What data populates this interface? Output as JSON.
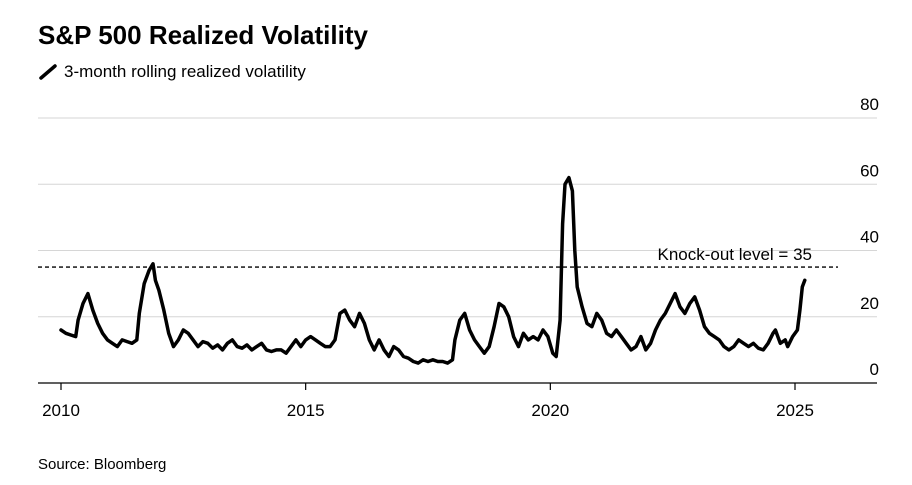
{
  "chart_data": {
    "type": "line",
    "title": "S&P 500 Realized Volatility",
    "series": [
      {
        "name": "3-month rolling realized volatility",
        "color": "#000000",
        "points": [
          [
            2010.0,
            16
          ],
          [
            2010.1,
            15
          ],
          [
            2010.2,
            14.5
          ],
          [
            2010.3,
            14
          ],
          [
            2010.35,
            19
          ],
          [
            2010.45,
            24
          ],
          [
            2010.55,
            27
          ],
          [
            2010.65,
            22
          ],
          [
            2010.75,
            18
          ],
          [
            2010.85,
            15
          ],
          [
            2010.95,
            13
          ],
          [
            2011.05,
            12
          ],
          [
            2011.15,
            11
          ],
          [
            2011.25,
            13
          ],
          [
            2011.35,
            12.5
          ],
          [
            2011.45,
            12
          ],
          [
            2011.55,
            13
          ],
          [
            2011.6,
            21
          ],
          [
            2011.7,
            30
          ],
          [
            2011.8,
            34
          ],
          [
            2011.88,
            36
          ],
          [
            2011.93,
            31
          ],
          [
            2012.0,
            28
          ],
          [
            2012.1,
            22
          ],
          [
            2012.2,
            15
          ],
          [
            2012.3,
            11
          ],
          [
            2012.4,
            13
          ],
          [
            2012.5,
            16
          ],
          [
            2012.6,
            15
          ],
          [
            2012.7,
            13
          ],
          [
            2012.8,
            11
          ],
          [
            2012.9,
            12.5
          ],
          [
            2013.0,
            12
          ],
          [
            2013.1,
            10.5
          ],
          [
            2013.2,
            11.5
          ],
          [
            2013.3,
            10
          ],
          [
            2013.4,
            12
          ],
          [
            2013.5,
            13
          ],
          [
            2013.6,
            11
          ],
          [
            2013.7,
            10.5
          ],
          [
            2013.8,
            11.5
          ],
          [
            2013.9,
            10
          ],
          [
            2014.0,
            11
          ],
          [
            2014.1,
            12
          ],
          [
            2014.2,
            10
          ],
          [
            2014.3,
            9.5
          ],
          [
            2014.4,
            10
          ],
          [
            2014.5,
            10
          ],
          [
            2014.6,
            9
          ],
          [
            2014.7,
            11
          ],
          [
            2014.8,
            13
          ],
          [
            2014.9,
            11
          ],
          [
            2015.0,
            13
          ],
          [
            2015.1,
            14
          ],
          [
            2015.2,
            13
          ],
          [
            2015.3,
            12
          ],
          [
            2015.4,
            11
          ],
          [
            2015.5,
            11
          ],
          [
            2015.6,
            13
          ],
          [
            2015.7,
            21
          ],
          [
            2015.8,
            22
          ],
          [
            2015.9,
            19
          ],
          [
            2016.0,
            17
          ],
          [
            2016.1,
            21
          ],
          [
            2016.2,
            18
          ],
          [
            2016.3,
            13
          ],
          [
            2016.4,
            10
          ],
          [
            2016.5,
            13
          ],
          [
            2016.6,
            10
          ],
          [
            2016.7,
            8
          ],
          [
            2016.8,
            11
          ],
          [
            2016.9,
            10
          ],
          [
            2017.0,
            8
          ],
          [
            2017.1,
            7.5
          ],
          [
            2017.2,
            6.5
          ],
          [
            2017.3,
            6
          ],
          [
            2017.4,
            7
          ],
          [
            2017.5,
            6.5
          ],
          [
            2017.6,
            7
          ],
          [
            2017.7,
            6.5
          ],
          [
            2017.8,
            6.5
          ],
          [
            2017.9,
            6
          ],
          [
            2018.0,
            7
          ],
          [
            2018.05,
            13
          ],
          [
            2018.15,
            19
          ],
          [
            2018.25,
            21
          ],
          [
            2018.35,
            16
          ],
          [
            2018.45,
            13
          ],
          [
            2018.55,
            11
          ],
          [
            2018.65,
            9
          ],
          [
            2018.75,
            11
          ],
          [
            2018.85,
            17
          ],
          [
            2018.95,
            24
          ],
          [
            2019.05,
            23
          ],
          [
            2019.15,
            20
          ],
          [
            2019.25,
            14
          ],
          [
            2019.35,
            11
          ],
          [
            2019.45,
            15
          ],
          [
            2019.55,
            13
          ],
          [
            2019.65,
            14
          ],
          [
            2019.75,
            13
          ],
          [
            2019.85,
            16
          ],
          [
            2019.95,
            14
          ],
          [
            2020.05,
            9
          ],
          [
            2020.12,
            8
          ],
          [
            2020.2,
            19
          ],
          [
            2020.25,
            48
          ],
          [
            2020.3,
            60
          ],
          [
            2020.38,
            62
          ],
          [
            2020.45,
            58
          ],
          [
            2020.5,
            40
          ],
          [
            2020.55,
            29
          ],
          [
            2020.65,
            23
          ],
          [
            2020.75,
            18
          ],
          [
            2020.85,
            17
          ],
          [
            2020.95,
            21
          ],
          [
            2021.05,
            19
          ],
          [
            2021.15,
            15
          ],
          [
            2021.25,
            14
          ],
          [
            2021.35,
            16
          ],
          [
            2021.45,
            14
          ],
          [
            2021.55,
            12
          ],
          [
            2021.65,
            10
          ],
          [
            2021.75,
            11
          ],
          [
            2021.85,
            14
          ],
          [
            2021.95,
            10
          ],
          [
            2022.05,
            12
          ],
          [
            2022.15,
            16
          ],
          [
            2022.25,
            19
          ],
          [
            2022.35,
            21
          ],
          [
            2022.45,
            24
          ],
          [
            2022.55,
            27
          ],
          [
            2022.65,
            23
          ],
          [
            2022.75,
            21
          ],
          [
            2022.85,
            24
          ],
          [
            2022.95,
            26
          ],
          [
            2023.05,
            22
          ],
          [
            2023.15,
            17
          ],
          [
            2023.25,
            15
          ],
          [
            2023.35,
            14
          ],
          [
            2023.45,
            13
          ],
          [
            2023.55,
            11
          ],
          [
            2023.65,
            10
          ],
          [
            2023.75,
            11
          ],
          [
            2023.85,
            13
          ],
          [
            2023.95,
            12
          ],
          [
            2024.05,
            11
          ],
          [
            2024.15,
            12
          ],
          [
            2024.25,
            10.5
          ],
          [
            2024.35,
            10
          ],
          [
            2024.45,
            12
          ],
          [
            2024.55,
            15
          ],
          [
            2024.6,
            16
          ],
          [
            2024.7,
            12
          ],
          [
            2024.8,
            13
          ],
          [
            2024.85,
            11
          ],
          [
            2024.95,
            14
          ],
          [
            2025.05,
            16
          ],
          [
            2025.1,
            22
          ],
          [
            2025.15,
            29
          ],
          [
            2025.2,
            31
          ]
        ]
      }
    ],
    "x_ticks": [
      "2010",
      "2015",
      "2020",
      "2025"
    ],
    "x_tick_values": [
      2010,
      2015,
      2020,
      2025
    ],
    "xlim": [
      2009.5,
      2026.5
    ],
    "y_ticks": [
      "0",
      "20",
      "40",
      "60",
      "80"
    ],
    "y_tick_values": [
      0,
      20,
      40,
      60,
      80
    ],
    "ylim": [
      0,
      80
    ],
    "gridlines": "horizontal",
    "reference_line": {
      "value": 35,
      "style": "dashed",
      "label": "Knock-out level = 35"
    },
    "source": "Source: Bloomberg"
  }
}
